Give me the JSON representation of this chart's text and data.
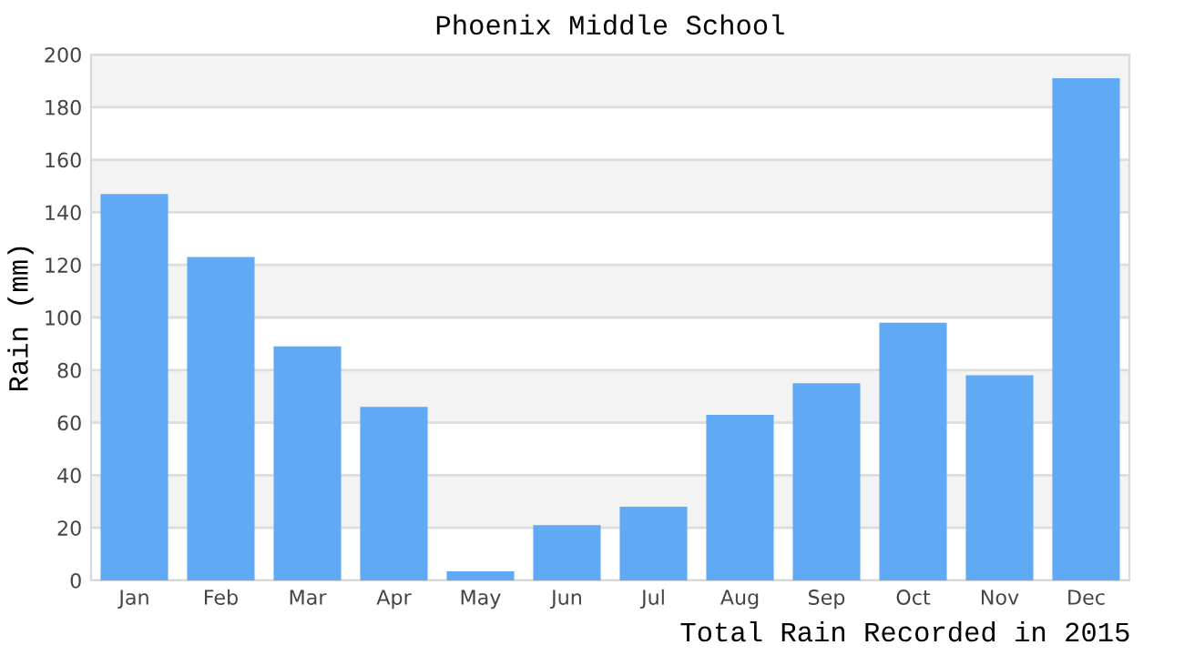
{
  "chart_data": {
    "type": "bar",
    "title": "Phoenix Middle School",
    "ylabel": "Rain (mm)",
    "categories": [
      "Jan",
      "Feb",
      "Mar",
      "Apr",
      "May",
      "Jun",
      "Jul",
      "Aug",
      "Sep",
      "Oct",
      "Nov",
      "Dec"
    ],
    "values": [
      147,
      123,
      89,
      66,
      3.5,
      21,
      28,
      63,
      75,
      98,
      78,
      191
    ],
    "color": "#60a9f4",
    "ylim": [
      0,
      200
    ],
    "yticks": [
      0,
      20,
      40,
      60,
      80,
      100,
      120,
      140,
      160,
      180,
      200
    ],
    "grid": "y",
    "annotations": [
      "Total Rain Recorded in 2015"
    ]
  }
}
